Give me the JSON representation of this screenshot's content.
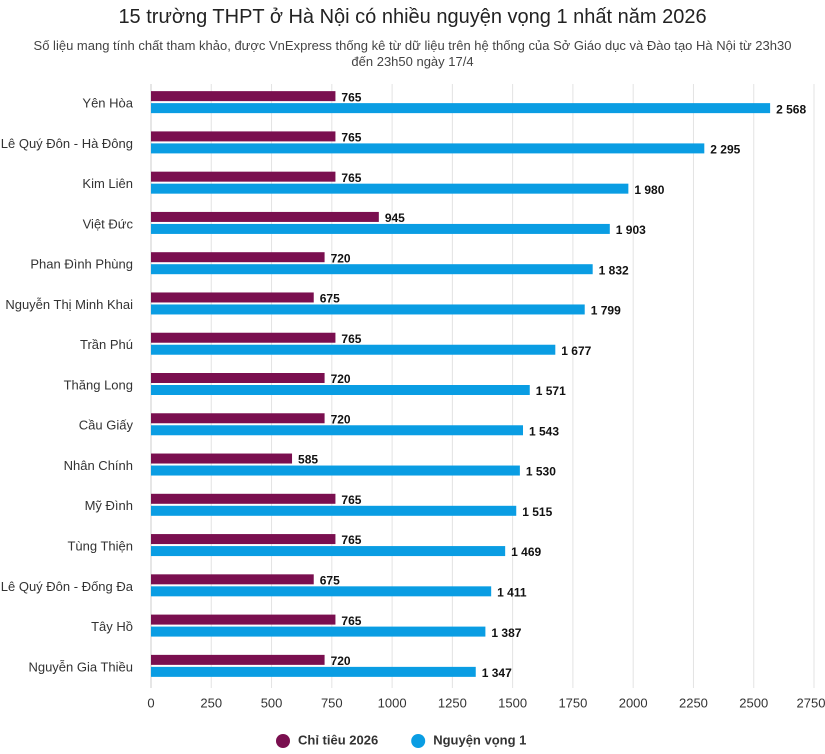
{
  "chart_data": {
    "type": "hbar",
    "title": "15 trường THPT ở Hà Nội có nhiều nguyện vọng 1 nhất năm 2026",
    "subtitle": "Số liệu mang tính chất tham khảo, được VnExpress thống kê từ dữ liệu trên hệ thống của Sở Giáo dục và Đào tạo Hà Nội từ 23h30 đến 23h50 ngày 17/4",
    "categories": [
      "Yên Hòa",
      "Lê Quý Đôn - Hà Đông",
      "Kim Liên",
      "Việt Đức",
      "Phan Đình Phùng",
      "Nguyễn Thị Minh Khai",
      "Trần Phú",
      "Thăng Long",
      "Cầu Giấy",
      "Nhân Chính",
      "Mỹ Đình",
      "Tùng Thiện",
      "Lê Quý Đôn - Đống Đa",
      "Tây Hồ",
      "Nguyễn Gia Thiều"
    ],
    "series": [
      {
        "name": "Chỉ tiêu 2026",
        "color": "#7a0f4f",
        "values": [
          765,
          765,
          765,
          945,
          720,
          675,
          765,
          720,
          720,
          585,
          765,
          765,
          675,
          765,
          720
        ]
      },
      {
        "name": "Nguyện vọng 1",
        "color": "#0a9de3",
        "values": [
          2568,
          2295,
          1980,
          1903,
          1832,
          1799,
          1677,
          1571,
          1543,
          1530,
          1515,
          1469,
          1411,
          1387,
          1347
        ],
        "value_labels": [
          "2 568",
          "2 295",
          "1 980",
          "1 903",
          "1 832",
          "1 799",
          "1 677",
          "1 571",
          "1 543",
          "1 530",
          "1 515",
          "1 469",
          "1 411",
          "1 387",
          "1 347"
        ]
      }
    ],
    "xlim": [
      0,
      2750
    ],
    "xticks": [
      0,
      250,
      500,
      750,
      1000,
      1250,
      1500,
      1750,
      2000,
      2250,
      2500,
      2750
    ],
    "grid": true,
    "legend": "bottom"
  }
}
